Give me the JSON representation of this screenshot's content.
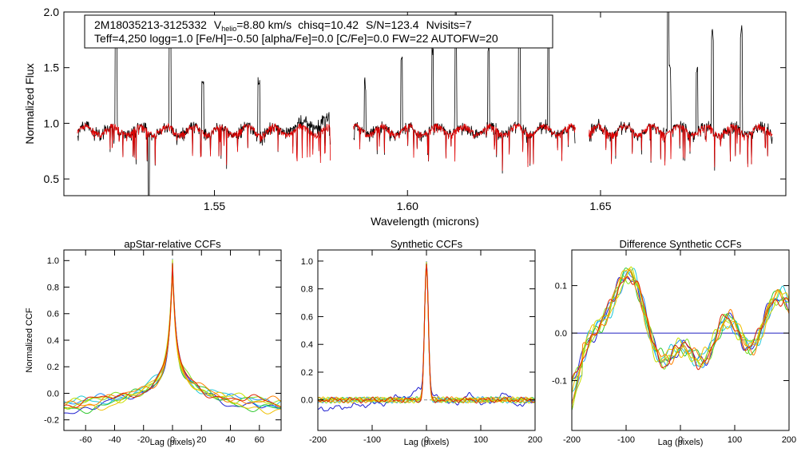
{
  "colors": {
    "observed": "#000000",
    "model": "#e00000",
    "ccf_palette": [
      "#1f1fd0",
      "#1e90ff",
      "#20c8d8",
      "#30c830",
      "#80e020",
      "#c8e000",
      "#f0c000",
      "#ff8000",
      "#e02000"
    ],
    "zero_line": "#2020c0"
  },
  "chart_data": [
    {
      "type": "line",
      "id": "spectrum",
      "title_line1": {
        "star": "2M18035213-3125332",
        "v_prefix": "V",
        "v_sub": "helio",
        "v_value": "=8.80 km/s",
        "chisq": "chisq=10.42",
        "snr": "S/N=123.4",
        "nvisits": "Nvisits=7"
      },
      "title_line2": "Teff=4,250 logg=1.0 [Fe/H]=-0.50 [alpha/Fe]=0.0 [C/Fe]=0.0 FW=22 AUTOFW=20",
      "xlabel": "Wavelength (microns)",
      "ylabel": "Normalized Flux",
      "xlim": [
        1.511,
        1.698
      ],
      "ylim": [
        0.35,
        2.0
      ],
      "xticks": [
        "1.55",
        "1.60",
        "1.65"
      ],
      "xtick_values": [
        1.55,
        1.6,
        1.65
      ],
      "yticks": [
        "0.5",
        "1.0",
        "1.5",
        "2.0"
      ],
      "ytick_values": [
        0.5,
        1.0,
        1.5,
        2.0
      ],
      "chips": [
        [
          1.5145,
          1.58
        ],
        [
          1.586,
          1.6435
        ],
        [
          1.647,
          1.6945
        ]
      ],
      "series": [
        {
          "name": "observed"
        },
        {
          "name": "model"
        }
      ]
    },
    {
      "type": "line",
      "id": "ccf1",
      "title": "apStar-relative CCFs",
      "xlabel": "Lag (pixels)",
      "ylabel": "Normalized CCF",
      "xlim": [
        -75,
        75
      ],
      "ylim": [
        -0.28,
        1.08
      ],
      "xticks": [
        "-60",
        "-40",
        "-20",
        "0",
        "20",
        "40",
        "60"
      ],
      "xtick_values": [
        -60,
        -40,
        -20,
        0,
        20,
        40,
        60
      ],
      "yticks": [
        "-0.2",
        "0.0",
        "0.2",
        "0.4",
        "0.6",
        "0.8",
        "1.0"
      ],
      "ytick_values": [
        -0.2,
        0.0,
        0.2,
        0.4,
        0.6,
        0.8,
        1.0
      ],
      "series_count": 9
    },
    {
      "type": "line",
      "id": "ccf2",
      "title": "Synthetic CCFs",
      "xlabel": "Lag (pixels)",
      "xlim": [
        -200,
        200
      ],
      "ylim": [
        -0.22,
        1.08
      ],
      "xticks": [
        "-200",
        "-100",
        "0",
        "100",
        "200"
      ],
      "xtick_values": [
        -200,
        -100,
        0,
        100,
        200
      ],
      "yticks": [
        "0.0",
        "0.2",
        "0.4",
        "0.6",
        "0.8",
        "1.0"
      ],
      "ytick_values": [
        0.0,
        0.2,
        0.4,
        0.6,
        0.8,
        1.0
      ],
      "series_count": 9
    },
    {
      "type": "line",
      "id": "ccf3",
      "title": "Difference Synthetic CCFs",
      "xlabel": "Lag (pixels)",
      "xlim": [
        -200,
        200
      ],
      "ylim": [
        -0.205,
        0.175
      ],
      "xticks": [
        "-200",
        "-100",
        "0",
        "100",
        "200"
      ],
      "xtick_values": [
        -200,
        -100,
        0,
        100,
        200
      ],
      "yticks": [
        "-0.1",
        "0.0",
        "0.1"
      ],
      "ytick_values": [
        -0.1,
        0.0,
        0.1
      ],
      "series_count": 9
    }
  ]
}
